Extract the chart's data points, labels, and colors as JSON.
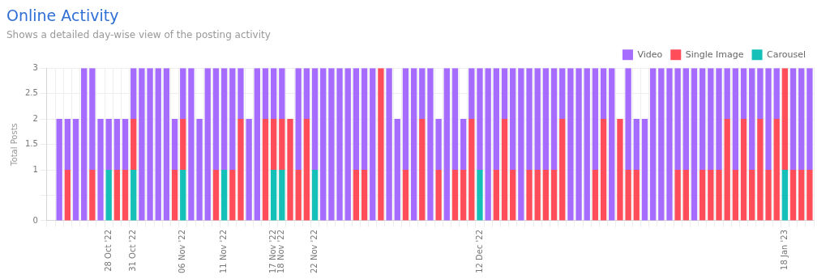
{
  "chart_data": {
    "type": "bar",
    "title": "Online Activity",
    "subtitle": "Shows a detailed day-wise view of the posting activity",
    "ylabel": "Total Posts",
    "categories": [
      null,
      null,
      null,
      null,
      null,
      null,
      null,
      "28 Oct '22",
      null,
      null,
      "31 Oct '22",
      null,
      null,
      null,
      null,
      null,
      "06 Nov '22",
      null,
      null,
      null,
      null,
      "11 Nov '22",
      null,
      null,
      null,
      null,
      null,
      "17 Nov '22",
      "18 Nov '22",
      null,
      null,
      null,
      "22 Nov '22",
      null,
      null,
      null,
      null,
      null,
      null,
      null,
      null,
      null,
      null,
      null,
      null,
      null,
      null,
      null,
      null,
      null,
      null,
      null,
      "12 Dec '22",
      null,
      null,
      null,
      null,
      null,
      null,
      null,
      null,
      null,
      null,
      null,
      null,
      null,
      null,
      null,
      null,
      null,
      null,
      null,
      null,
      null,
      null,
      null,
      null,
      null,
      null,
      null,
      null,
      null,
      null,
      null,
      null,
      null,
      null,
      null,
      null,
      "18 Jan '23",
      null,
      null,
      null
    ],
    "stacked": true,
    "series": [
      {
        "name": "Carousel",
        "color": "#14c0b8",
        "values": [
          0,
          0,
          0,
          0,
          0,
          0,
          0,
          1,
          0,
          0,
          1,
          0,
          0,
          0,
          0,
          0,
          1,
          0,
          0,
          0,
          0,
          1,
          0,
          0,
          0,
          0,
          0,
          1,
          1,
          0,
          0,
          0,
          1,
          0,
          0,
          0,
          0,
          0,
          0,
          0,
          0,
          0,
          0,
          0,
          0,
          0,
          0,
          0,
          0,
          0,
          0,
          0,
          1,
          0,
          0,
          0,
          0,
          0,
          0,
          0,
          0,
          0,
          0,
          0,
          0,
          0,
          0,
          0,
          0,
          0,
          0,
          0,
          0,
          0,
          0,
          0,
          0,
          0,
          0,
          0,
          0,
          0,
          0,
          0,
          0,
          0,
          0,
          0,
          0,
          1,
          0,
          0,
          0
        ]
      },
      {
        "name": "Single Image",
        "color": "#ff4d5a",
        "values": [
          0,
          0,
          1,
          0,
          0,
          1,
          0,
          0,
          1,
          1,
          1,
          0,
          0,
          0,
          0,
          1,
          1,
          0,
          0,
          0,
          1,
          0,
          1,
          2,
          0,
          0,
          2,
          1,
          1,
          2,
          1,
          2,
          0,
          0,
          0,
          0,
          0,
          1,
          1,
          0,
          3,
          0,
          0,
          1,
          0,
          2,
          0,
          1,
          0,
          1,
          1,
          2,
          0,
          0,
          1,
          2,
          1,
          0,
          1,
          1,
          1,
          1,
          2,
          0,
          0,
          0,
          1,
          2,
          0,
          2,
          1,
          1,
          0,
          0,
          0,
          0,
          1,
          1,
          0,
          1,
          1,
          1,
          2,
          1,
          2,
          1,
          2,
          1,
          2,
          2,
          1,
          1,
          1
        ]
      },
      {
        "name": "Video",
        "color": "#a66cff",
        "values": [
          0,
          2,
          1,
          2,
          3,
          2,
          2,
          1,
          1,
          1,
          1,
          3,
          3,
          3,
          3,
          1,
          1,
          3,
          2,
          3,
          2,
          2,
          2,
          1,
          2,
          3,
          1,
          1,
          1,
          0,
          2,
          1,
          2,
          3,
          3,
          3,
          3,
          2,
          2,
          3,
          0,
          3,
          2,
          2,
          3,
          1,
          3,
          1,
          3,
          2,
          1,
          1,
          2,
          3,
          2,
          1,
          2,
          3,
          2,
          2,
          2,
          2,
          1,
          3,
          3,
          3,
          2,
          1,
          3,
          0,
          2,
          1,
          2,
          3,
          3,
          3,
          2,
          2,
          3,
          2,
          2,
          2,
          1,
          2,
          1,
          2,
          1,
          2,
          1,
          0,
          2,
          2,
          2
        ]
      }
    ],
    "ylim": [
      0,
      3
    ],
    "yticks": [
      0,
      {
        "value": 0.5,
        "label": null
      },
      1,
      1.5,
      2,
      2.5,
      3
    ],
    "grid": true,
    "legend": "top right"
  }
}
